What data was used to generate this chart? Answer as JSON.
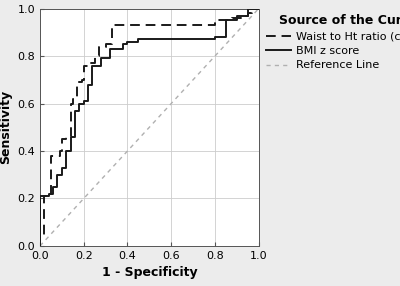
{
  "title": "Source of the Curve",
  "xlabel": "1 - Specificity",
  "ylabel": "Sensitivity",
  "xlim": [
    0.0,
    1.0
  ],
  "ylim": [
    0.0,
    1.0
  ],
  "xticks": [
    0.0,
    0.2,
    0.4,
    0.6,
    0.8,
    1.0
  ],
  "yticks": [
    0.0,
    0.2,
    0.4,
    0.6,
    0.8,
    1.0
  ],
  "background_color": "#ececec",
  "plot_bg_color": "#ffffff",
  "grid_color": "#ffffff",
  "waist_ht_curve": {
    "x": [
      0.0,
      0.0,
      0.02,
      0.02,
      0.04,
      0.04,
      0.05,
      0.05,
      0.07,
      0.07,
      0.09,
      0.09,
      0.1,
      0.1,
      0.12,
      0.12,
      0.14,
      0.14,
      0.15,
      0.15,
      0.17,
      0.17,
      0.19,
      0.19,
      0.2,
      0.2,
      0.22,
      0.22,
      0.25,
      0.25,
      0.27,
      0.27,
      0.3,
      0.3,
      0.33,
      0.33,
      0.38,
      0.38,
      0.44,
      0.44,
      0.5,
      0.5,
      0.6,
      0.6,
      0.65,
      0.65,
      0.8,
      0.8,
      0.88,
      0.88,
      0.92,
      0.92,
      0.95,
      0.95,
      0.97,
      0.97,
      1.0
    ],
    "y": [
      0.0,
      0.04,
      0.04,
      0.21,
      0.21,
      0.21,
      0.21,
      0.38,
      0.38,
      0.38,
      0.38,
      0.4,
      0.4,
      0.45,
      0.45,
      0.46,
      0.46,
      0.6,
      0.6,
      0.62,
      0.62,
      0.69,
      0.69,
      0.7,
      0.7,
      0.76,
      0.76,
      0.77,
      0.77,
      0.8,
      0.8,
      0.84,
      0.84,
      0.85,
      0.85,
      0.93,
      0.93,
      0.93,
      0.93,
      0.93,
      0.93,
      0.93,
      0.93,
      0.93,
      0.93,
      0.93,
      0.93,
      0.95,
      0.95,
      0.96,
      0.96,
      0.97,
      0.97,
      0.98,
      0.98,
      1.0,
      1.0
    ],
    "color": "#1a1a1a",
    "dashes": [
      5,
      3
    ],
    "linewidth": 1.4,
    "label": "Waist to Ht ratio (cm/m)"
  },
  "bmi_curve": {
    "x": [
      0.0,
      0.0,
      0.02,
      0.02,
      0.04,
      0.04,
      0.06,
      0.06,
      0.08,
      0.08,
      0.1,
      0.1,
      0.12,
      0.12,
      0.14,
      0.14,
      0.16,
      0.16,
      0.18,
      0.18,
      0.2,
      0.2,
      0.22,
      0.22,
      0.24,
      0.24,
      0.28,
      0.28,
      0.32,
      0.32,
      0.38,
      0.38,
      0.4,
      0.4,
      0.45,
      0.45,
      0.55,
      0.55,
      0.65,
      0.65,
      0.8,
      0.8,
      0.85,
      0.85,
      0.9,
      0.9,
      0.95,
      0.95,
      1.0
    ],
    "y": [
      0.0,
      0.21,
      0.21,
      0.21,
      0.21,
      0.22,
      0.22,
      0.25,
      0.25,
      0.3,
      0.3,
      0.33,
      0.33,
      0.4,
      0.4,
      0.46,
      0.46,
      0.57,
      0.57,
      0.6,
      0.6,
      0.61,
      0.61,
      0.68,
      0.68,
      0.76,
      0.76,
      0.79,
      0.79,
      0.83,
      0.83,
      0.85,
      0.85,
      0.86,
      0.86,
      0.87,
      0.87,
      0.87,
      0.87,
      0.87,
      0.87,
      0.88,
      0.88,
      0.95,
      0.95,
      0.97,
      0.97,
      1.0,
      1.0
    ],
    "color": "#1a1a1a",
    "linewidth": 1.4,
    "label": "BMI z score"
  },
  "reference_line": {
    "x": [
      0.0,
      1.0
    ],
    "y": [
      0.0,
      1.0
    ],
    "color": "#b0b0b0",
    "linewidth": 1.0,
    "label": "Reference Line"
  },
  "legend_title_fontsize": 9,
  "legend_fontsize": 8,
  "axis_label_fontsize": 9,
  "tick_fontsize": 8
}
